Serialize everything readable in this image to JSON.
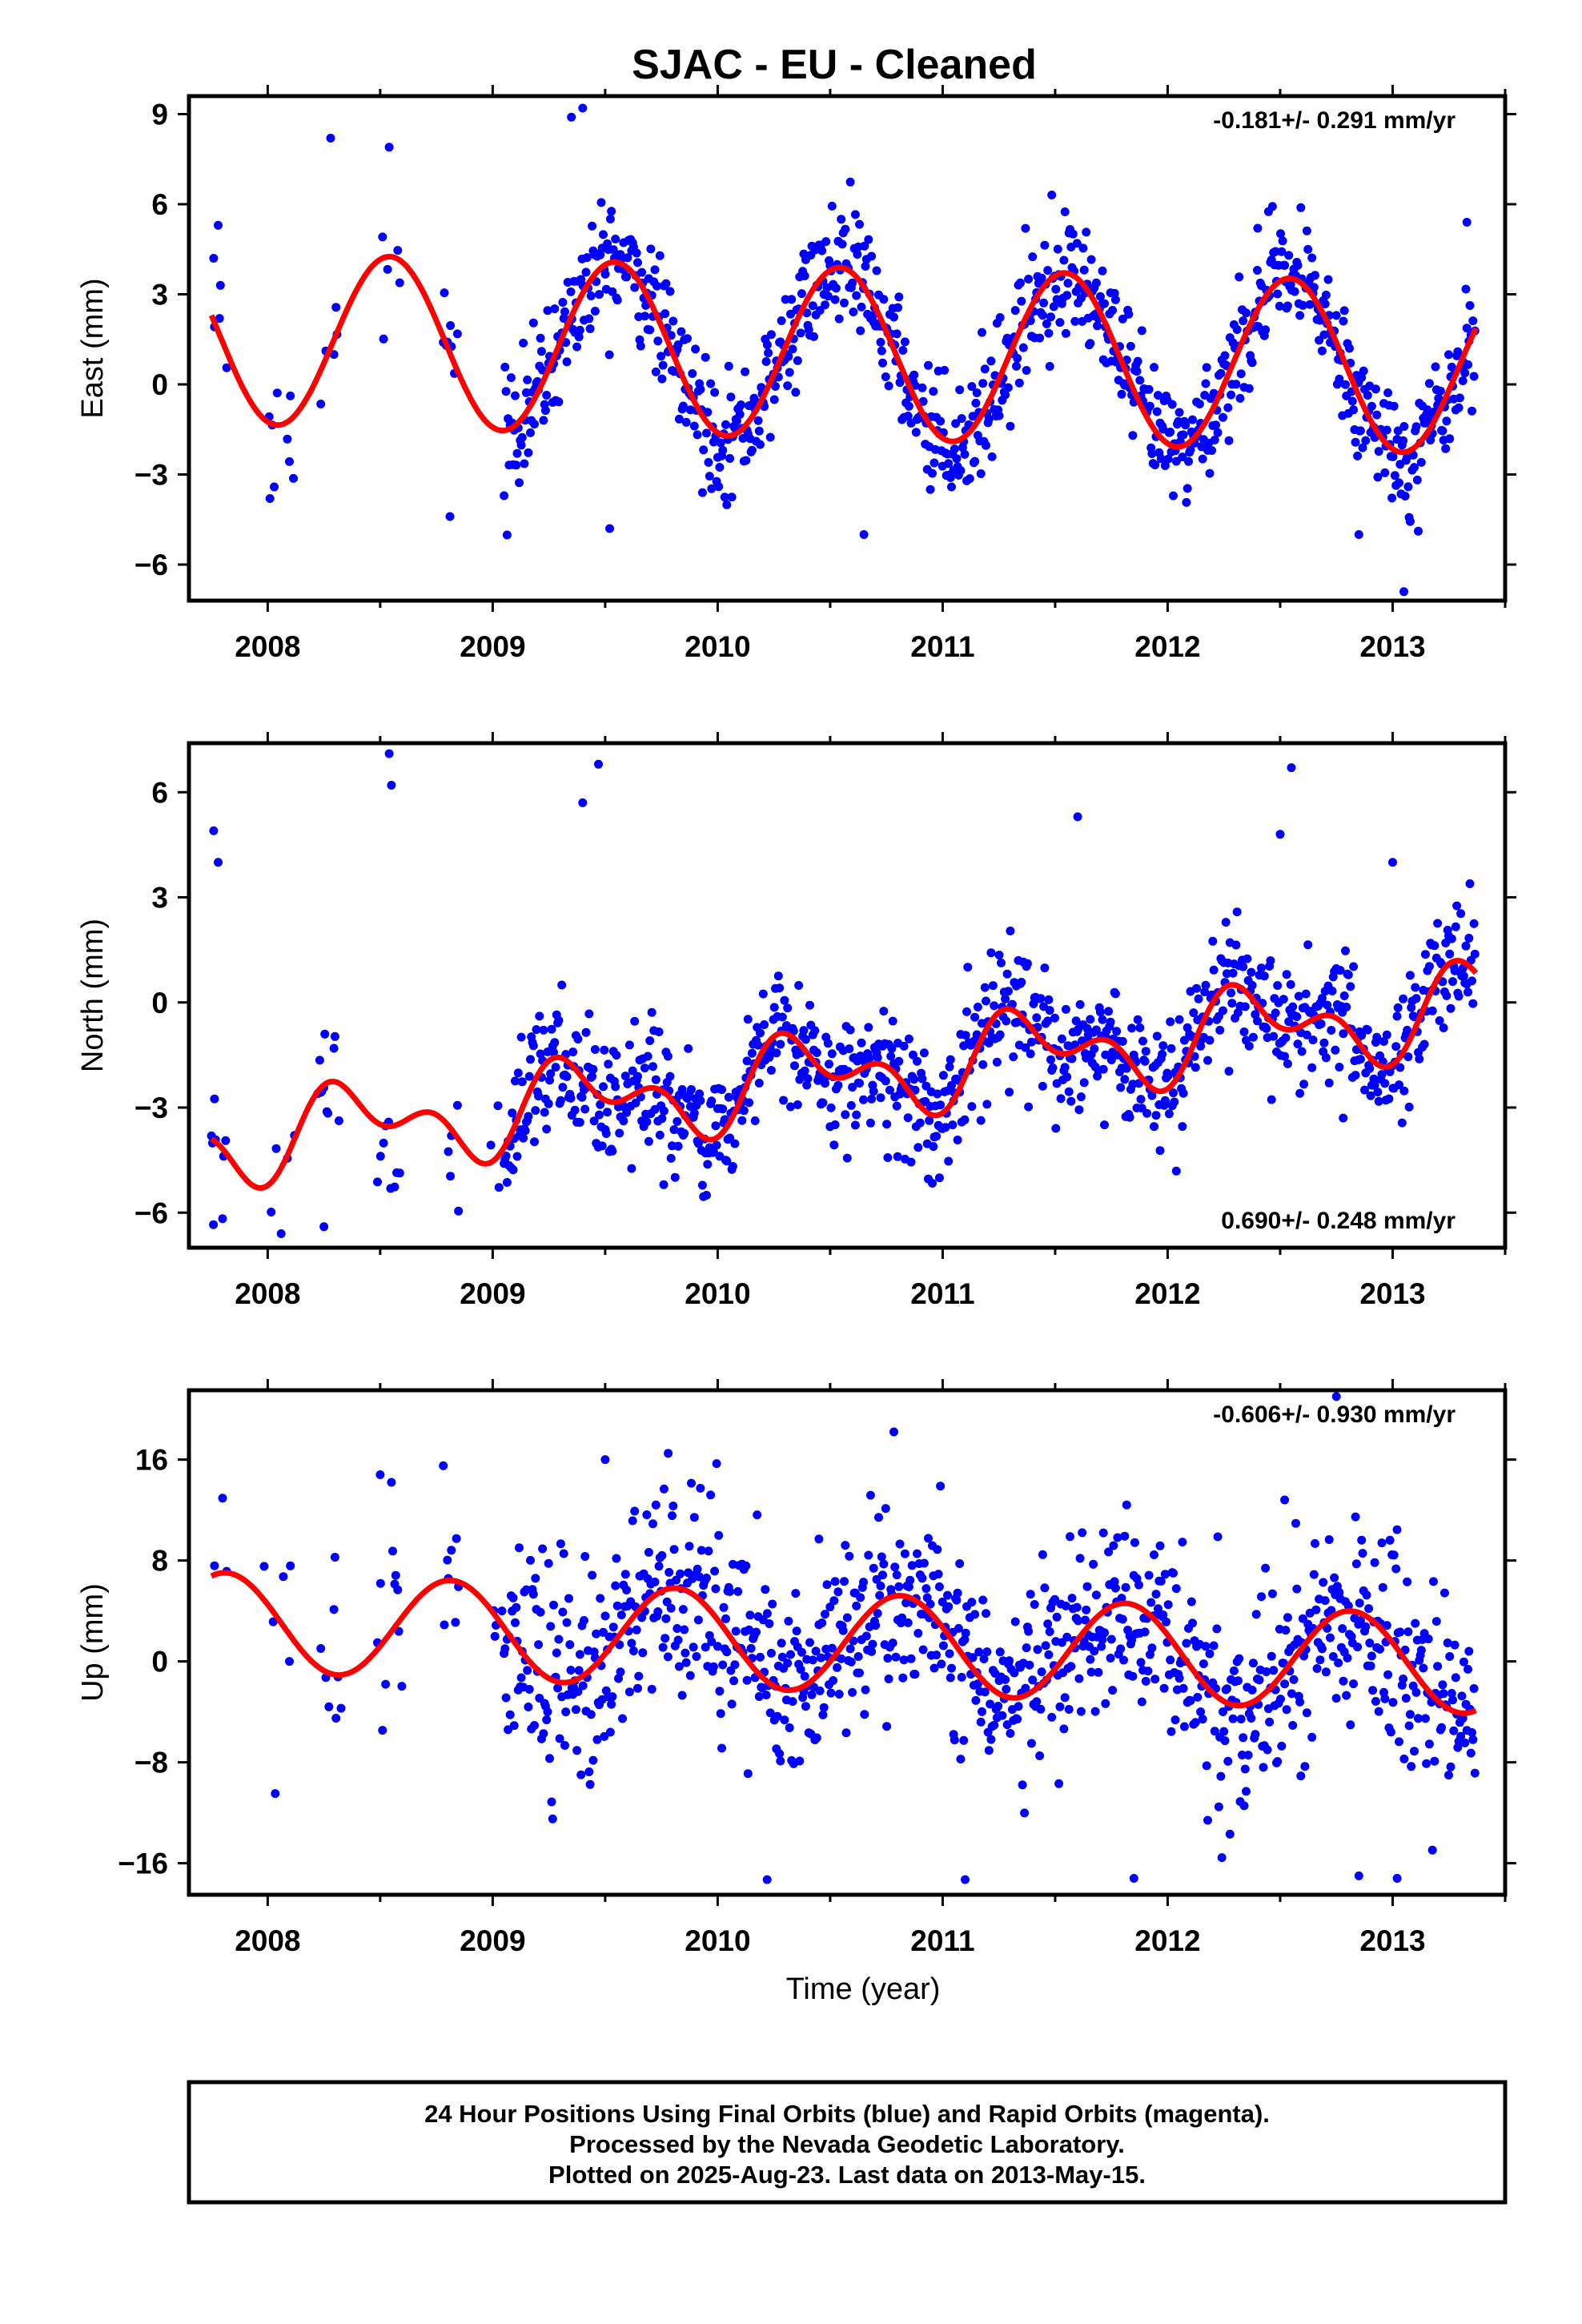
{
  "title": "SJAC  - EU - Cleaned",
  "colors": {
    "points": "#0000ff",
    "fit": "#ff0000",
    "frame": "#000000"
  },
  "footer": {
    "line1": "24 Hour Positions Using Final Orbits (blue) and Rapid Orbits (magenta).",
    "line2": "Processed by the Nevada Geodetic Laboratory.",
    "line3": "Plotted on 2025-Aug-23. Last data on 2013-May-15."
  },
  "chart_data": [
    {
      "type": "scatter",
      "id": "east",
      "ylabel": "East (mm)",
      "xlabel": "",
      "rate_text": "-0.181+/- 0.291 mm/yr",
      "rate_position": "top-right",
      "xlim": [
        2007.65,
        2013.5
      ],
      "ylim": [
        -7.2,
        9.6
      ],
      "xticks": [
        2008,
        2009,
        2010,
        2011,
        2012,
        2013
      ],
      "yticks": [
        -6,
        -3,
        0,
        3,
        6,
        9
      ],
      "yticklabels": [
        "−6",
        "−3",
        "0",
        "3",
        "6",
        "9"
      ],
      "data_range": [
        2007.75,
        2013.37
      ],
      "model": {
        "offset": 1.05,
        "trend": -0.181,
        "annual_cos": -2.75,
        "annual_sin": -0.75
      },
      "scatter_sigma": 1.0,
      "points": [
        [
          2007.76,
          4.2
        ],
        [
          2007.78,
          5.3
        ],
        [
          2007.79,
          3.3
        ],
        [
          2008.01,
          -3.8
        ],
        [
          2008.28,
          8.2
        ],
        [
          2008.54,
          7.9
        ],
        [
          2008.81,
          -4.4
        ],
        [
          2009.35,
          8.9
        ],
        [
          2009.4,
          9.2
        ],
        [
          2009.52,
          -4.8
        ],
        [
          2010.65,
          -5.0
        ],
        [
          2012.4,
          5.2
        ],
        [
          2012.85,
          -5.0
        ],
        [
          2013.05,
          -6.9
        ],
        [
          2013.33,
          5.4
        ]
      ]
    },
    {
      "type": "scatter",
      "id": "north",
      "ylabel": "North (mm)",
      "xlabel": "",
      "rate_text": "0.690+/- 0.248 mm/yr",
      "rate_position": "bottom-right",
      "xlim": [
        2007.65,
        2013.5
      ],
      "ylim": [
        -7.0,
        7.4
      ],
      "xticks": [
        2008,
        2009,
        2010,
        2011,
        2012,
        2013
      ],
      "yticks": [
        -6,
        -3,
        0,
        3,
        6
      ],
      "yticklabels": [
        "−6",
        "−3",
        "0",
        "3",
        "6"
      ],
      "data_range": [
        2007.75,
        2013.37
      ],
      "model": {
        "offset": -2.1,
        "trend": 0.69,
        "annual_cos": -0.7,
        "annual_sin": 0.6,
        "semi_cos": -0.7,
        "semi_sin": 0.0
      },
      "scatter_sigma": 0.9,
      "points": [
        [
          2007.76,
          4.9
        ],
        [
          2007.78,
          4.0
        ],
        [
          2008.06,
          -6.6
        ],
        [
          2008.25,
          -6.4
        ],
        [
          2008.54,
          7.1
        ],
        [
          2008.55,
          6.2
        ],
        [
          2009.4,
          5.7
        ],
        [
          2009.47,
          6.8
        ],
        [
          2009.76,
          -5.2
        ],
        [
          2010.8,
          -4.4
        ],
        [
          2011.6,
          5.3
        ],
        [
          2012.5,
          4.8
        ],
        [
          2012.55,
          6.7
        ],
        [
          2012.78,
          -3.3
        ],
        [
          2013.0,
          4.0
        ]
      ]
    },
    {
      "type": "scatter",
      "id": "up",
      "ylabel": "Up (mm)",
      "xlabel": "Time (year)",
      "rate_text": "-0.606+/- 0.930 mm/yr",
      "rate_position": "top-right",
      "xlim": [
        2007.65,
        2013.5
      ],
      "ylim": [
        -18.5,
        21.5
      ],
      "xticks": [
        2008,
        2009,
        2010,
        2011,
        2012,
        2013
      ],
      "yticks": [
        -16,
        -8,
        0,
        8,
        16
      ],
      "yticklabels": [
        "−16",
        "−8",
        "0",
        "8",
        "16"
      ],
      "data_range": [
        2007.75,
        2013.37
      ],
      "model": {
        "offset": 1.5,
        "trend": -0.606,
        "annual_cos": 1.5,
        "annual_sin": -3.6
      },
      "scatter_sigma": 4.0,
      "points": [
        [
          2008.5,
          14.8
        ],
        [
          2009.5,
          16.0
        ],
        [
          2009.78,
          16.5
        ],
        [
          2010.22,
          -17.3
        ],
        [
          2010.45,
          9.7
        ],
        [
          2011.1,
          -17.3
        ],
        [
          2011.85,
          -17.2
        ],
        [
          2012.52,
          12.8
        ],
        [
          2012.85,
          -17.0
        ],
        [
          2013.02,
          -17.2
        ],
        [
          2012.75,
          21.0
        ],
        [
          2008.55,
          14.2
        ]
      ]
    }
  ]
}
